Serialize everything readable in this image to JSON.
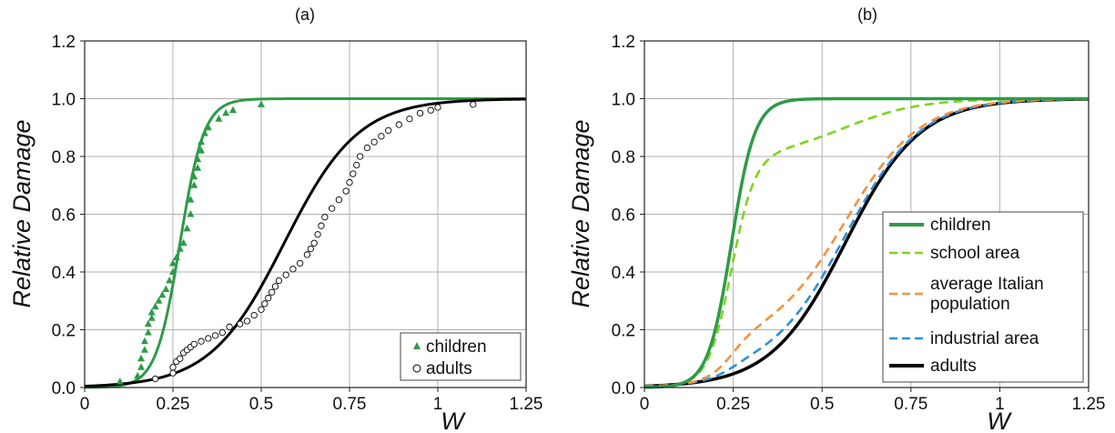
{
  "chart_data": [
    {
      "type": "scatter",
      "title": "(a)",
      "xlabel": "W",
      "ylabel": "Relative Damage",
      "xlim": [
        0,
        1.25
      ],
      "ylim": [
        0,
        1.2
      ],
      "xticks": [
        "0",
        "0.25",
        "0.5",
        "0.75",
        "1",
        "1.25"
      ],
      "yticks": [
        "0.0",
        "0.2",
        "0.4",
        "0.6",
        "0.8",
        "1.0",
        "1.2"
      ],
      "grid": true,
      "legend_position": "bottom-right",
      "legend": [
        {
          "label": "children",
          "marker": "triangle",
          "color": "#2e9a48"
        },
        {
          "label": "adults",
          "marker": "open-circle",
          "color": "#000000"
        }
      ],
      "series": [
        {
          "name": "children",
          "kind": "points",
          "color": "#2e9a48",
          "points": [
            [
              0.1,
              0.02
            ],
            [
              0.15,
              0.04
            ],
            [
              0.16,
              0.07
            ],
            [
              0.16,
              0.1
            ],
            [
              0.17,
              0.13
            ],
            [
              0.17,
              0.16
            ],
            [
              0.18,
              0.19
            ],
            [
              0.18,
              0.22
            ],
            [
              0.19,
              0.24
            ],
            [
              0.19,
              0.26
            ],
            [
              0.2,
              0.28
            ],
            [
              0.21,
              0.3
            ],
            [
              0.22,
              0.32
            ],
            [
              0.23,
              0.34
            ],
            [
              0.24,
              0.37
            ],
            [
              0.25,
              0.4
            ],
            [
              0.25,
              0.43
            ],
            [
              0.26,
              0.45
            ],
            [
              0.27,
              0.48
            ],
            [
              0.28,
              0.5
            ],
            [
              0.29,
              0.55
            ],
            [
              0.3,
              0.6
            ],
            [
              0.3,
              0.65
            ],
            [
              0.31,
              0.7
            ],
            [
              0.31,
              0.73
            ],
            [
              0.32,
              0.76
            ],
            [
              0.32,
              0.79
            ],
            [
              0.33,
              0.82
            ],
            [
              0.33,
              0.85
            ],
            [
              0.34,
              0.88
            ],
            [
              0.35,
              0.9
            ],
            [
              0.38,
              0.93
            ],
            [
              0.4,
              0.95
            ],
            [
              0.42,
              0.96
            ],
            [
              0.5,
              0.98
            ]
          ]
        },
        {
          "name": "children-fit",
          "kind": "line",
          "color": "#2e9a48",
          "curve": {
            "mu": 0.27,
            "s": 0.034
          }
        },
        {
          "name": "adults",
          "kind": "points",
          "color": "#000000",
          "points": [
            [
              0.2,
              0.03
            ],
            [
              0.25,
              0.05
            ],
            [
              0.25,
              0.07
            ],
            [
              0.26,
              0.09
            ],
            [
              0.27,
              0.1
            ],
            [
              0.28,
              0.12
            ],
            [
              0.29,
              0.13
            ],
            [
              0.3,
              0.14
            ],
            [
              0.31,
              0.15
            ],
            [
              0.33,
              0.16
            ],
            [
              0.35,
              0.17
            ],
            [
              0.37,
              0.18
            ],
            [
              0.39,
              0.19
            ],
            [
              0.41,
              0.21
            ],
            [
              0.44,
              0.22
            ],
            [
              0.46,
              0.23
            ],
            [
              0.48,
              0.25
            ],
            [
              0.5,
              0.27
            ],
            [
              0.51,
              0.29
            ],
            [
              0.52,
              0.31
            ],
            [
              0.53,
              0.33
            ],
            [
              0.54,
              0.35
            ],
            [
              0.55,
              0.37
            ],
            [
              0.57,
              0.39
            ],
            [
              0.59,
              0.41
            ],
            [
              0.61,
              0.43
            ],
            [
              0.63,
              0.46
            ],
            [
              0.64,
              0.48
            ],
            [
              0.65,
              0.5
            ],
            [
              0.66,
              0.53
            ],
            [
              0.67,
              0.56
            ],
            [
              0.68,
              0.59
            ],
            [
              0.7,
              0.62
            ],
            [
              0.72,
              0.65
            ],
            [
              0.74,
              0.68
            ],
            [
              0.75,
              0.71
            ],
            [
              0.76,
              0.74
            ],
            [
              0.77,
              0.77
            ],
            [
              0.78,
              0.8
            ],
            [
              0.8,
              0.83
            ],
            [
              0.82,
              0.85
            ],
            [
              0.84,
              0.87
            ],
            [
              0.86,
              0.89
            ],
            [
              0.89,
              0.91
            ],
            [
              0.92,
              0.93
            ],
            [
              0.95,
              0.95
            ],
            [
              0.98,
              0.96
            ],
            [
              1.0,
              0.97
            ],
            [
              1.1,
              0.98
            ]
          ]
        },
        {
          "name": "adults-fit",
          "kind": "line",
          "color": "#000000",
          "curve": {
            "mu": 0.565,
            "s": 0.105
          }
        }
      ]
    },
    {
      "type": "line",
      "title": "(b)",
      "xlabel": "W",
      "ylabel": "Relative Damage",
      "xlim": [
        0,
        1.25
      ],
      "ylim": [
        0,
        1.2
      ],
      "xticks": [
        "0",
        "0.25",
        "0.5",
        "0.75",
        "1",
        "1.25"
      ],
      "yticks": [
        "0.0",
        "0.2",
        "0.4",
        "0.6",
        "0.8",
        "1.0",
        "1.2"
      ],
      "grid": true,
      "legend_position": "bottom-right",
      "series": [
        {
          "name": "children",
          "dash": "solid",
          "color": "#2e9a48",
          "curve": {
            "mu": 0.245,
            "s": 0.033
          }
        },
        {
          "name": "school area",
          "dash": "dashed",
          "color": "#7ed321",
          "mix": [
            {
              "w": 0.8,
              "mu": 0.245,
              "s": 0.033
            },
            {
              "w": 0.2,
              "mu": 0.565,
              "s": 0.105
            }
          ]
        },
        {
          "name": "average Italian population",
          "legend_lines": [
            "average Italian",
            "population"
          ],
          "dash": "dashed",
          "color": "#f5913e",
          "mix": [
            {
              "w": 0.15,
              "mu": 0.245,
              "s": 0.033
            },
            {
              "w": 0.85,
              "mu": 0.565,
              "s": 0.105
            }
          ]
        },
        {
          "name": "industrial area",
          "dash": "dashed",
          "color": "#2f8fd8",
          "mix": [
            {
              "w": 0.05,
              "mu": 0.245,
              "s": 0.033
            },
            {
              "w": 0.95,
              "mu": 0.565,
              "s": 0.105
            }
          ]
        },
        {
          "name": "adults",
          "dash": "solid",
          "color": "#000000",
          "curve": {
            "mu": 0.565,
            "s": 0.105
          }
        }
      ]
    }
  ]
}
